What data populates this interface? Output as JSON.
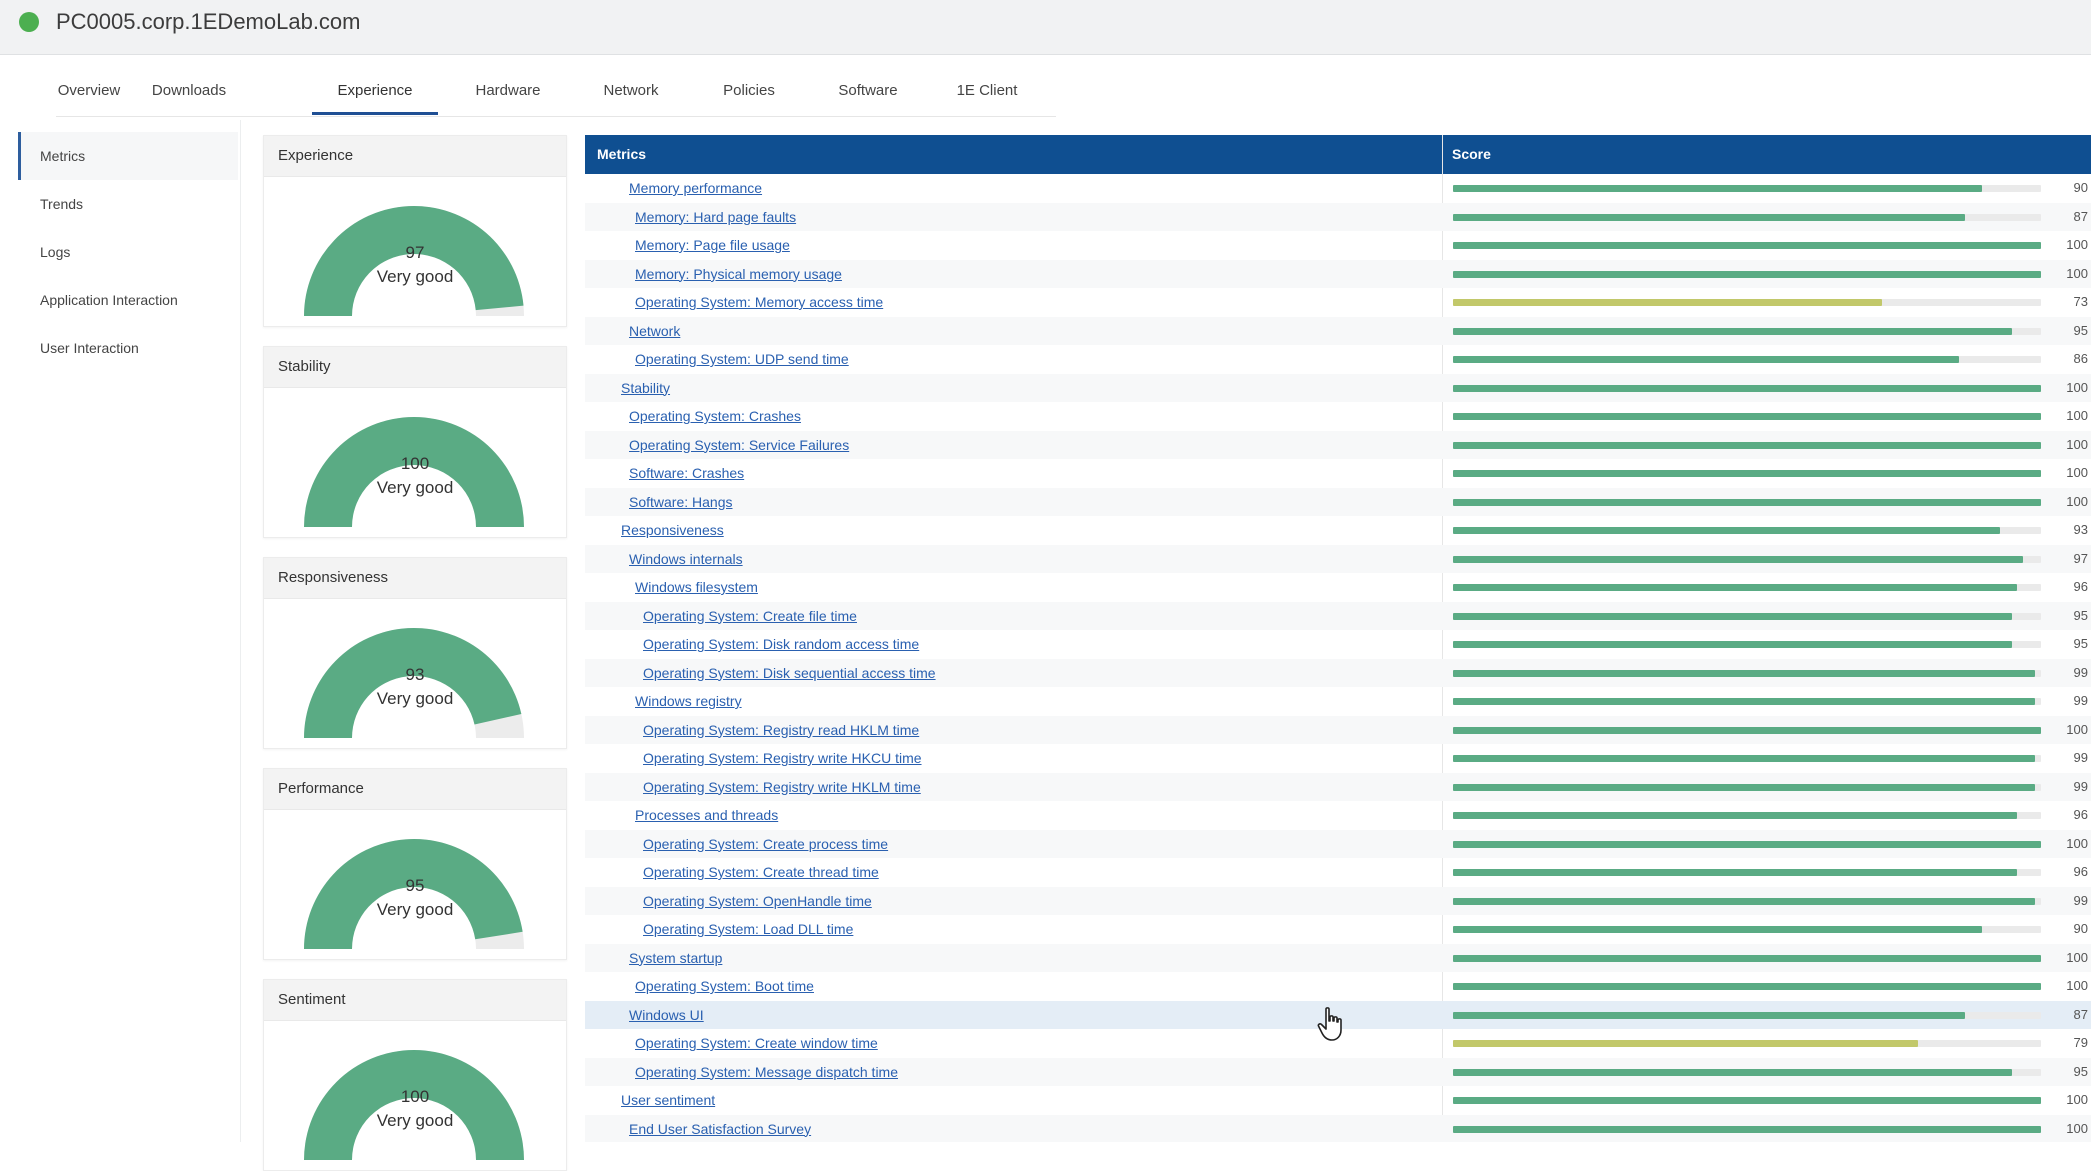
{
  "header": {
    "hostname": "PC0005.corp.1EDemoLab.com",
    "status_color": "#4caf50"
  },
  "tabs": [
    {
      "label": "Overview",
      "active": false
    },
    {
      "label": "Downloads",
      "active": false
    },
    {
      "label": "Experience",
      "active": true
    },
    {
      "label": "Hardware",
      "active": false
    },
    {
      "label": "Network",
      "active": false
    },
    {
      "label": "Policies",
      "active": false
    },
    {
      "label": "Software",
      "active": false
    },
    {
      "label": "1E Client",
      "active": false
    }
  ],
  "sidebar": {
    "items": [
      {
        "label": "Metrics",
        "active": true
      },
      {
        "label": "Trends",
        "active": false
      },
      {
        "label": "Logs",
        "active": false
      },
      {
        "label": "Application Interaction",
        "active": false
      },
      {
        "label": "User Interaction",
        "active": false
      }
    ]
  },
  "gauges": [
    {
      "title": "Experience",
      "value": "97",
      "label": "Very good",
      "fraction": 0.97
    },
    {
      "title": "Stability",
      "value": "100",
      "label": "Very good",
      "fraction": 1.0
    },
    {
      "title": "Responsiveness",
      "value": "93",
      "label": "Very good",
      "fraction": 0.93
    },
    {
      "title": "Performance",
      "value": "95",
      "label": "Very good",
      "fraction": 0.95
    },
    {
      "title": "Sentiment",
      "value": "100",
      "label": "Very good",
      "fraction": 1.0
    }
  ],
  "colors": {
    "good": "#5aab84",
    "fair": "#c2c86a",
    "track": "#eaeaea",
    "header_bg": "#0f4f91",
    "link": "#2a60b0"
  },
  "table": {
    "col_metrics": "Metrics",
    "col_score": "Score",
    "rows": [
      {
        "name": "Memory performance",
        "level": 2,
        "score": 90
      },
      {
        "name": "Memory: Hard page faults",
        "level": 3,
        "score": 87
      },
      {
        "name": "Memory: Page file usage",
        "level": 3,
        "score": 100
      },
      {
        "name": "Memory: Physical memory usage",
        "level": 3,
        "score": 100
      },
      {
        "name": "Operating System: Memory access time",
        "level": 3,
        "score": 73
      },
      {
        "name": "Network",
        "level": 2,
        "score": 95
      },
      {
        "name": "Operating System: UDP send time",
        "level": 3,
        "score": 86
      },
      {
        "name": "Stability",
        "level": 1,
        "score": 100
      },
      {
        "name": "Operating System: Crashes",
        "level": 2,
        "score": 100
      },
      {
        "name": "Operating System: Service Failures",
        "level": 2,
        "score": 100
      },
      {
        "name": "Software: Crashes",
        "level": 2,
        "score": 100
      },
      {
        "name": "Software: Hangs",
        "level": 2,
        "score": 100
      },
      {
        "name": "Responsiveness",
        "level": 1,
        "score": 93
      },
      {
        "name": "Windows internals",
        "level": 2,
        "score": 97
      },
      {
        "name": "Windows filesystem",
        "level": 3,
        "score": 96
      },
      {
        "name": "Operating System: Create file time",
        "level": 4,
        "score": 95
      },
      {
        "name": "Operating System: Disk random access time",
        "level": 4,
        "score": 95
      },
      {
        "name": "Operating System: Disk sequential access time",
        "level": 4,
        "score": 99
      },
      {
        "name": "Windows registry",
        "level": 3,
        "score": 99
      },
      {
        "name": "Operating System: Registry read HKLM time",
        "level": 4,
        "score": 100
      },
      {
        "name": "Operating System: Registry write HKCU time",
        "level": 4,
        "score": 99
      },
      {
        "name": "Operating System: Registry write HKLM time",
        "level": 4,
        "score": 99
      },
      {
        "name": "Processes and threads",
        "level": 3,
        "score": 96
      },
      {
        "name": "Operating System: Create process time",
        "level": 4,
        "score": 100
      },
      {
        "name": "Operating System: Create thread time",
        "level": 4,
        "score": 96
      },
      {
        "name": "Operating System: OpenHandle time",
        "level": 4,
        "score": 99
      },
      {
        "name": "Operating System: Load DLL time",
        "level": 4,
        "score": 90
      },
      {
        "name": "System startup",
        "level": 2,
        "score": 100
      },
      {
        "name": "Operating System: Boot time",
        "level": 3,
        "score": 100
      },
      {
        "name": "Windows UI",
        "level": 2,
        "score": 87,
        "highlight": true
      },
      {
        "name": "Operating System: Create window time",
        "level": 3,
        "score": 79
      },
      {
        "name": "Operating System: Message dispatch time",
        "level": 3,
        "score": 95
      },
      {
        "name": "User sentiment",
        "level": 1,
        "score": 100
      },
      {
        "name": "End User Satisfaction Survey",
        "level": 2,
        "score": 100
      }
    ]
  }
}
